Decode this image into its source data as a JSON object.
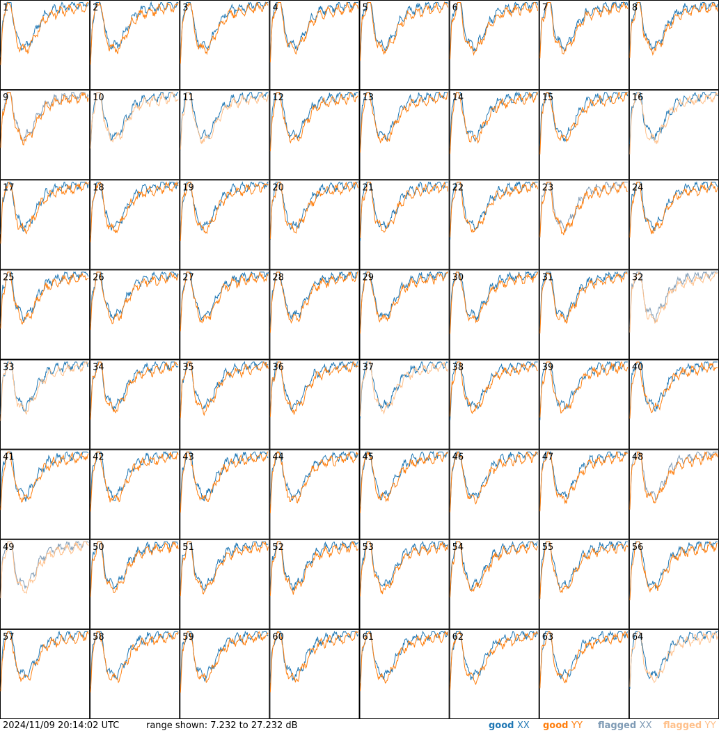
{
  "chart_data": {
    "type": "line",
    "title": "",
    "xlabel": "",
    "ylabel": "",
    "ylim": [
      7.232,
      27.232
    ],
    "grid": "8x8",
    "panels": [
      {
        "label": "1",
        "xx": "good",
        "yy": "good"
      },
      {
        "label": "2",
        "xx": "good",
        "yy": "good"
      },
      {
        "label": "3",
        "xx": "good",
        "yy": "good"
      },
      {
        "label": "4",
        "xx": "good",
        "yy": "good"
      },
      {
        "label": "5",
        "xx": "good",
        "yy": "good"
      },
      {
        "label": "6",
        "xx": "good",
        "yy": "good"
      },
      {
        "label": "7",
        "xx": "good",
        "yy": "good"
      },
      {
        "label": "8",
        "xx": "good",
        "yy": "good"
      },
      {
        "label": "9",
        "xx": "flagged",
        "yy": "good"
      },
      {
        "label": "10",
        "xx": "good",
        "yy": "flagged"
      },
      {
        "label": "11",
        "xx": "good",
        "yy": "flagged"
      },
      {
        "label": "12",
        "xx": "good",
        "yy": "good"
      },
      {
        "label": "13",
        "xx": "good",
        "yy": "good"
      },
      {
        "label": "14",
        "xx": "good",
        "yy": "good"
      },
      {
        "label": "15",
        "xx": "good",
        "yy": "good"
      },
      {
        "label": "16",
        "xx": "good",
        "yy": "flagged"
      },
      {
        "label": "17",
        "xx": "good",
        "yy": "good"
      },
      {
        "label": "18",
        "xx": "good",
        "yy": "good"
      },
      {
        "label": "19",
        "xx": "good",
        "yy": "good"
      },
      {
        "label": "20",
        "xx": "good",
        "yy": "good"
      },
      {
        "label": "21",
        "xx": "good",
        "yy": "good"
      },
      {
        "label": "22",
        "xx": "good",
        "yy": "good"
      },
      {
        "label": "23",
        "xx": "flagged",
        "yy": "good"
      },
      {
        "label": "24",
        "xx": "good",
        "yy": "good"
      },
      {
        "label": "25",
        "xx": "good",
        "yy": "good"
      },
      {
        "label": "26",
        "xx": "good",
        "yy": "good"
      },
      {
        "label": "27",
        "xx": "good",
        "yy": "good"
      },
      {
        "label": "28",
        "xx": "good",
        "yy": "good"
      },
      {
        "label": "29",
        "xx": "good",
        "yy": "good"
      },
      {
        "label": "30",
        "xx": "good",
        "yy": "good"
      },
      {
        "label": "31",
        "xx": "good",
        "yy": "good"
      },
      {
        "label": "32",
        "xx": "flagged",
        "yy": "flagged"
      },
      {
        "label": "33",
        "xx": "good",
        "yy": "flagged"
      },
      {
        "label": "34",
        "xx": "good",
        "yy": "good"
      },
      {
        "label": "35",
        "xx": "good",
        "yy": "good"
      },
      {
        "label": "36",
        "xx": "good",
        "yy": "good"
      },
      {
        "label": "37",
        "xx": "good",
        "yy": "flagged"
      },
      {
        "label": "38",
        "xx": "good",
        "yy": "good"
      },
      {
        "label": "39",
        "xx": "good",
        "yy": "good"
      },
      {
        "label": "40",
        "xx": "good",
        "yy": "good"
      },
      {
        "label": "41",
        "xx": "good",
        "yy": "good"
      },
      {
        "label": "42",
        "xx": "good",
        "yy": "good"
      },
      {
        "label": "43",
        "xx": "good",
        "yy": "good"
      },
      {
        "label": "44",
        "xx": "good",
        "yy": "good"
      },
      {
        "label": "45",
        "xx": "good",
        "yy": "good"
      },
      {
        "label": "46",
        "xx": "good",
        "yy": "good"
      },
      {
        "label": "47",
        "xx": "good",
        "yy": "good"
      },
      {
        "label": "48",
        "xx": "flagged",
        "yy": "good"
      },
      {
        "label": "49",
        "xx": "flagged",
        "yy": "flagged"
      },
      {
        "label": "50",
        "xx": "good",
        "yy": "good"
      },
      {
        "label": "51",
        "xx": "good",
        "yy": "good"
      },
      {
        "label": "52",
        "xx": "good",
        "yy": "good"
      },
      {
        "label": "53",
        "xx": "good",
        "yy": "good"
      },
      {
        "label": "54",
        "xx": "good",
        "yy": "good"
      },
      {
        "label": "55",
        "xx": "good",
        "yy": "good"
      },
      {
        "label": "56",
        "xx": "good",
        "yy": "good"
      },
      {
        "label": "57",
        "xx": "good",
        "yy": "good"
      },
      {
        "label": "58",
        "xx": "good",
        "yy": "good"
      },
      {
        "label": "59",
        "xx": "good",
        "yy": "good"
      },
      {
        "label": "60",
        "xx": "good",
        "yy": "good"
      },
      {
        "label": "61",
        "xx": "good",
        "yy": "good"
      },
      {
        "label": "62",
        "xx": "good",
        "yy": "good"
      },
      {
        "label": "63",
        "xx": "good",
        "yy": "good"
      },
      {
        "label": "64",
        "xx": "good",
        "yy": "flagged"
      }
    ]
  },
  "footer": {
    "timestamp": "2024/11/09 20:14:02 UTC",
    "range_text": "range shown: 7.232 to 27.232 dB"
  },
  "legend": [
    {
      "prefix": "good ",
      "pol": "XX",
      "color": "#1f77b4"
    },
    {
      "prefix": "good ",
      "pol": "YY",
      "color": "#ff7f0e"
    },
    {
      "prefix": "flagged ",
      "pol": "XX",
      "color": "#7f9bb5"
    },
    {
      "prefix": "flagged ",
      "pol": "YY",
      "color": "#ffc08a"
    }
  ],
  "colors": {
    "good_xx": "#1f77b4",
    "good_yy": "#ff7f0e",
    "flagged_xx": "#7f9bb5",
    "flagged_yy": "#ffc08a"
  }
}
